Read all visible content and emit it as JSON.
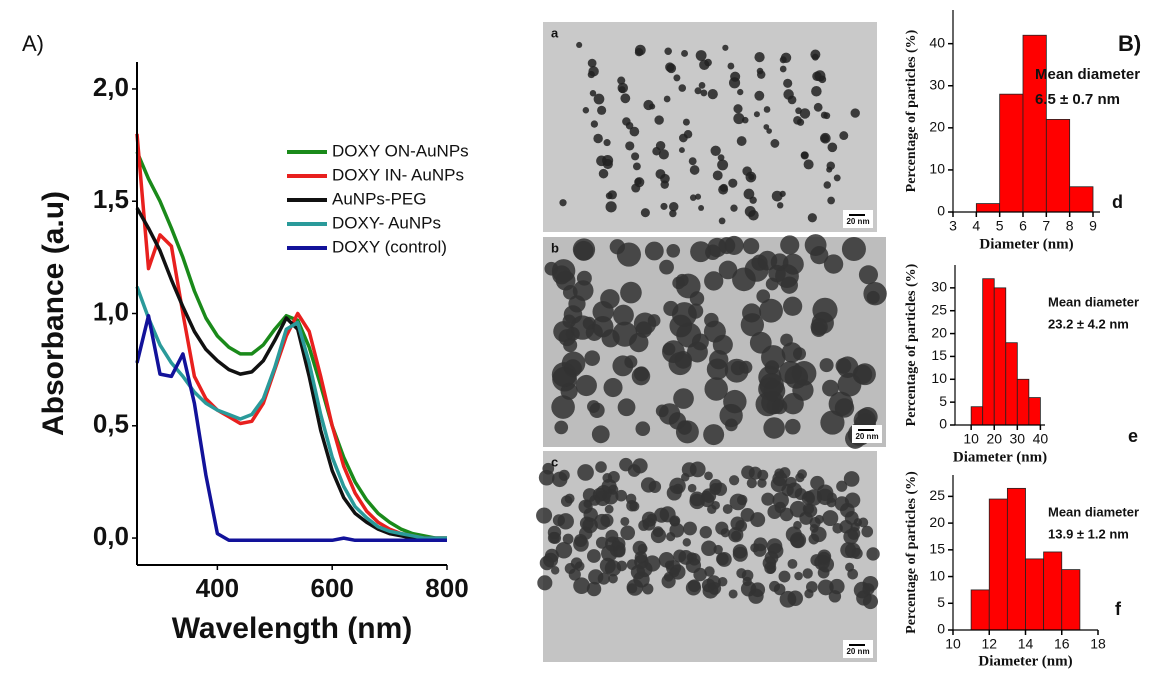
{
  "figure": {
    "panel_a": "A)",
    "panel_b": "B)"
  },
  "micrographs": [
    {
      "label": "a",
      "scale_bar": "20 nm"
    },
    {
      "label": "b",
      "scale_bar": "20 nm"
    },
    {
      "label": "c",
      "scale_bar": "20 nm"
    }
  ],
  "chart_data": [
    {
      "type": "line",
      "x_label": "Wavelength (nm)",
      "y_label": "Absorbance (a.u)",
      "legend": "upper right",
      "x": [
        260,
        280,
        300,
        320,
        340,
        360,
        380,
        400,
        420,
        440,
        460,
        480,
        500,
        520,
        540,
        560,
        580,
        600,
        620,
        640,
        660,
        680,
        700,
        720,
        740,
        760,
        780,
        800
      ],
      "series": [
        {
          "name": "DOXY ON-AuNPs",
          "color": "#1a8a1a",
          "values": [
            1.72,
            1.6,
            1.5,
            1.38,
            1.25,
            1.1,
            0.98,
            0.9,
            0.85,
            0.82,
            0.82,
            0.86,
            0.93,
            0.99,
            0.97,
            0.85,
            0.68,
            0.5,
            0.36,
            0.25,
            0.17,
            0.11,
            0.07,
            0.04,
            0.02,
            0.01,
            0.0,
            0.0
          ]
        },
        {
          "name": "DOXY IN- AuNPs",
          "color": "#e8201e",
          "values": [
            1.8,
            1.2,
            1.35,
            1.3,
            1.0,
            0.72,
            0.62,
            0.57,
            0.54,
            0.51,
            0.52,
            0.6,
            0.75,
            0.9,
            1.0,
            0.92,
            0.72,
            0.5,
            0.32,
            0.2,
            0.12,
            0.07,
            0.04,
            0.02,
            0.01,
            0.0,
            0.0,
            0.0
          ]
        },
        {
          "name": "AuNPs-PEG",
          "color": "#111111",
          "values": [
            1.47,
            1.38,
            1.28,
            1.15,
            1.03,
            0.92,
            0.84,
            0.79,
            0.75,
            0.73,
            0.74,
            0.79,
            0.88,
            0.98,
            0.93,
            0.72,
            0.48,
            0.3,
            0.18,
            0.11,
            0.07,
            0.04,
            0.02,
            0.01,
            0.0,
            0.0,
            0.0,
            0.0
          ]
        },
        {
          "name": "DOXY- AuNPs",
          "color": "#2a9a9a",
          "values": [
            1.12,
            0.98,
            0.86,
            0.78,
            0.72,
            0.65,
            0.6,
            0.57,
            0.55,
            0.53,
            0.55,
            0.62,
            0.76,
            0.93,
            0.96,
            0.78,
            0.55,
            0.36,
            0.23,
            0.14,
            0.09,
            0.05,
            0.03,
            0.02,
            0.01,
            0.0,
            0.0,
            0.0
          ]
        },
        {
          "name": "DOXY (control)",
          "color": "#12129a",
          "values": [
            0.78,
            0.99,
            0.73,
            0.72,
            0.82,
            0.6,
            0.28,
            0.02,
            -0.01,
            -0.01,
            -0.01,
            -0.01,
            -0.01,
            -0.01,
            -0.01,
            -0.01,
            -0.01,
            -0.01,
            0.0,
            -0.01,
            -0.01,
            -0.01,
            -0.01,
            -0.01,
            -0.01,
            -0.01,
            -0.01,
            -0.01
          ]
        }
      ],
      "xlim": [
        260,
        800
      ],
      "xticks": [
        400,
        600,
        800
      ],
      "ylim": [
        -0.12,
        2.12
      ],
      "yticks": [
        {
          "value": 0,
          "label": "0,0"
        },
        {
          "value": 0.5,
          "label": "0,5"
        },
        {
          "value": 1,
          "label": "1,0"
        },
        {
          "value": 1.5,
          "label": "1,5"
        },
        {
          "value": 2,
          "label": "2,0"
        }
      ]
    },
    {
      "type": "histogram",
      "color": "#ff0000",
      "x_label": "Diameter (nm)",
      "y_label": "Percentage of particles (%)",
      "annotations": [
        "Mean diameter",
        "6.5 ± 0.7 nm"
      ],
      "tag": "d",
      "bins": [
        4,
        5,
        6,
        7,
        8,
        9
      ],
      "values": [
        2,
        28,
        42,
        22,
        6
      ],
      "xlim": [
        3,
        9.3
      ],
      "xticks": [
        3,
        4,
        5,
        6,
        7,
        8,
        9
      ],
      "ylim": [
        0,
        48
      ],
      "yticks": [
        0,
        10,
        20,
        30,
        40
      ]
    },
    {
      "type": "histogram",
      "color": "#ff0000",
      "x_label": "Diameter (nm)",
      "y_label": "Percentage of particles (%)",
      "annotations": [
        "Mean diameter",
        "23.2 ± 4.2 nm"
      ],
      "tag": "e",
      "bins": [
        10,
        15,
        20,
        25,
        30,
        35,
        40
      ],
      "values": [
        4,
        32,
        30,
        18,
        10,
        6
      ],
      "xlim": [
        3,
        42
      ],
      "xticks": [
        10,
        20,
        30,
        40
      ],
      "ylim": [
        0,
        35
      ],
      "yticks": [
        0,
        5,
        10,
        15,
        20,
        25,
        30
      ]
    },
    {
      "type": "histogram",
      "color": "#ff0000",
      "x_label": "Diameter (nm)",
      "y_label": "Percentage of particles (%)",
      "annotations": [
        "Mean diameter",
        "13.9 ± 1.2 nm"
      ],
      "tag": "f",
      "bins": [
        11,
        12,
        13,
        14,
        15,
        16,
        17
      ],
      "values": [
        7.5,
        24.5,
        26.5,
        13.3,
        14.6,
        11.3
      ],
      "xlim": [
        10,
        18
      ],
      "xticks": [
        10,
        12,
        14,
        16,
        18
      ],
      "ylim": [
        0,
        29
      ],
      "yticks": [
        0,
        5,
        10,
        15,
        20,
        25
      ]
    }
  ]
}
